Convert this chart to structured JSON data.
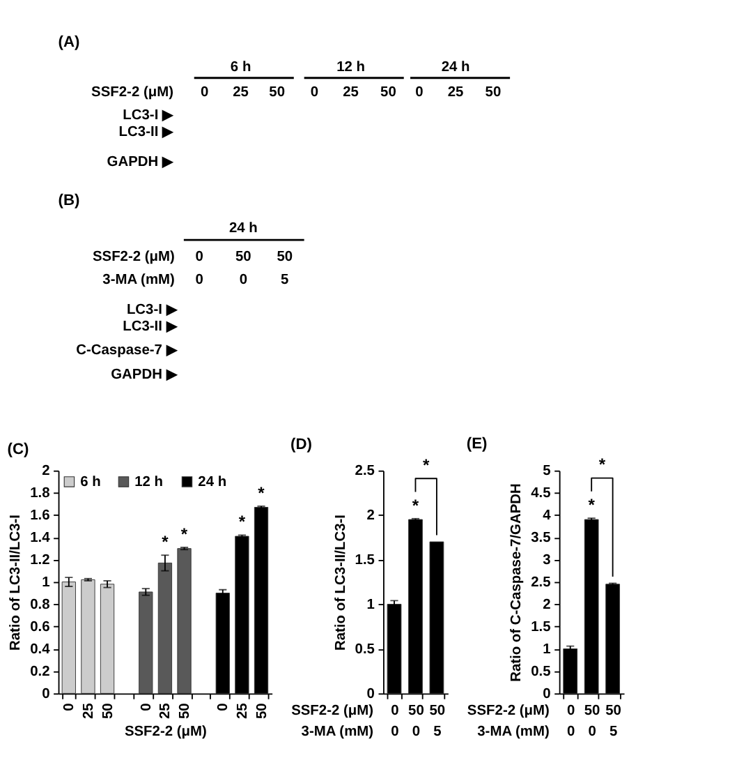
{
  "chart_data": [
    {
      "type": "other",
      "title": "(A)",
      "annotations": [
        "6 h",
        "12 h",
        "24 h",
        "SSF2-2 (μM)",
        "0",
        "25",
        "50",
        "0",
        "25",
        "50",
        "0",
        "25",
        "50",
        "LC3-I ▶",
        "LC3-II ▶",
        "GAPDH ▶"
      ]
    },
    {
      "type": "other",
      "title": "(B)",
      "annotations": [
        "24 h",
        "SSF2-2 (μM)",
        "0",
        "50",
        "50",
        "3-MA (mM)",
        "0",
        "0",
        "5",
        "LC3-I ▶",
        "LC3-II ▶",
        "C-Caspase-7 ▶",
        "GAPDH ▶"
      ]
    },
    {
      "type": "bar",
      "title": "(C)",
      "xlabel": "SSF2-2 (μM)",
      "ylabel": "Ratio of LC3-II/LC3-I",
      "categories": [
        "0",
        "25",
        "50",
        null,
        "0",
        "25",
        "50",
        null,
        "0",
        "25",
        "50"
      ],
      "series": [
        {
          "name": "6 h",
          "color": "#cccccc",
          "values": [
            1.0,
            1.02,
            0.98,
            null,
            null,
            null,
            null,
            null,
            null,
            null,
            null
          ],
          "errors": [
            0.04,
            0.01,
            0.03,
            null,
            null,
            null,
            null,
            null,
            null,
            null,
            null
          ]
        },
        {
          "name": "12 h",
          "color": "#595959",
          "values": [
            null,
            null,
            null,
            null,
            0.91,
            1.17,
            1.3,
            null,
            null,
            null,
            null
          ],
          "errors": [
            null,
            null,
            null,
            null,
            0.03,
            0.07,
            0.01,
            null,
            null,
            null,
            null
          ],
          "value_labels": [
            null,
            null,
            null,
            null,
            null,
            "*",
            "*",
            null,
            null,
            null,
            null
          ]
        },
        {
          "name": "24 h",
          "color": "#000000",
          "values": [
            null,
            null,
            null,
            null,
            null,
            null,
            null,
            null,
            0.9,
            1.41,
            1.67
          ],
          "errors": [
            null,
            null,
            null,
            null,
            null,
            null,
            null,
            null,
            0.03,
            0.01,
            0.01
          ],
          "value_labels": [
            null,
            null,
            null,
            null,
            null,
            null,
            null,
            null,
            null,
            "*",
            "*"
          ]
        }
      ],
      "ylim": [
        0,
        2
      ],
      "yticks": [
        0,
        0.2,
        0.4,
        0.6,
        0.8,
        1,
        1.2,
        1.4,
        1.6,
        1.8,
        2
      ],
      "legend": "top left"
    },
    {
      "type": "bar",
      "title": "(D)",
      "xlabel": "SSF2-2 (μM)\n3-MA (mM)",
      "ylabel": "Ratio of LC3-II/LC3-I",
      "categories": [
        "0\n0",
        "50\n0",
        "50\n5"
      ],
      "values": [
        1.0,
        1.95,
        1.7
      ],
      "errors": [
        0.04,
        0.01,
        null
      ],
      "value_labels": [
        null,
        "*",
        null
      ],
      "color": "#000000",
      "ylim": [
        0,
        2.5
      ],
      "yticks": [
        0,
        0.5,
        1,
        1.5,
        2,
        2.5
      ],
      "annotations": [
        "*"
      ]
    },
    {
      "type": "bar",
      "title": "(E)",
      "xlabel": "SSF2-2 (μM)\n3-MA (mM)",
      "ylabel": "Ratio of C-Caspase-7/GAPDH",
      "categories": [
        "0\n0",
        "50\n0",
        "50\n5"
      ],
      "values": [
        1.0,
        3.9,
        2.45
      ],
      "errors": [
        0.06,
        0.03,
        0.02
      ],
      "value_labels": [
        null,
        "*",
        null
      ],
      "color": "#000000",
      "ylim": [
        0,
        5
      ],
      "yticks": [
        0,
        0.5,
        1,
        1.5,
        2,
        2.5,
        3,
        3.5,
        4,
        4.5,
        5
      ],
      "annotations": [
        "*"
      ]
    }
  ]
}
